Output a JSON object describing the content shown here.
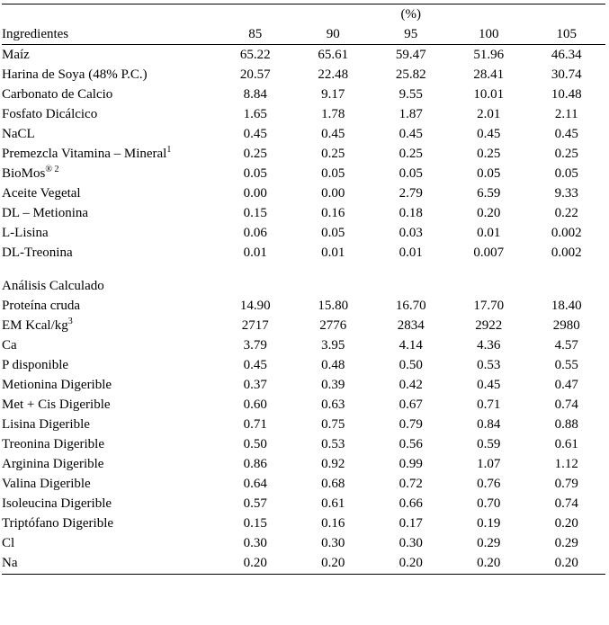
{
  "header": {
    "percent_label": "(%)",
    "row_label": "Ingredientes",
    "levels": [
      "85",
      "90",
      "95",
      "100",
      "105"
    ]
  },
  "ingredientes": [
    {
      "name": "Maíz",
      "sup": "",
      "vals": [
        "65.22",
        "65.61",
        "59.47",
        "51.96",
        "46.34"
      ]
    },
    {
      "name": "Harina de Soya (48% P.C.)",
      "sup": "",
      "vals": [
        "20.57",
        "22.48",
        "25.82",
        "28.41",
        "30.74"
      ]
    },
    {
      "name": "Carbonato de Calcio",
      "sup": "",
      "vals": [
        "8.84",
        "9.17",
        "9.55",
        "10.01",
        "10.48"
      ]
    },
    {
      "name": "Fosfato Dicálcico",
      "sup": "",
      "vals": [
        "1.65",
        "1.78",
        "1.87",
        "2.01",
        "2.11"
      ]
    },
    {
      "name": "NaCL",
      "sup": "",
      "vals": [
        "0.45",
        "0.45",
        "0.45",
        "0.45",
        "0.45"
      ]
    },
    {
      "name": "Premezcla Vitamina – Mineral",
      "sup": "1",
      "vals": [
        "0.25",
        "0.25",
        "0.25",
        "0.25",
        "0.25"
      ]
    },
    {
      "name": "BioMos",
      "sup": "® 2",
      "vals": [
        "0.05",
        "0.05",
        "0.05",
        "0.05",
        "0.05"
      ]
    },
    {
      "name": "Aceite Vegetal",
      "sup": "",
      "vals": [
        "0.00",
        "0.00",
        "2.79",
        "6.59",
        "9.33"
      ]
    },
    {
      "name": "DL – Metionina",
      "sup": "",
      "vals": [
        "0.15",
        "0.16",
        "0.18",
        "0.20",
        "0.22"
      ]
    },
    {
      "name": "L-Lisina",
      "sup": "",
      "vals": [
        "0.06",
        "0.05",
        "0.03",
        "0.01",
        "0.002"
      ]
    },
    {
      "name": "DL-Treonina",
      "sup": "",
      "vals": [
        "0.01",
        "0.01",
        "0.01",
        "0.007",
        "0.002"
      ]
    }
  ],
  "analisis_label": "Análisis Calculado",
  "analisis": [
    {
      "name": "Proteína cruda",
      "sup": "",
      "vals": [
        "14.90",
        "15.80",
        "16.70",
        "17.70",
        "18.40"
      ]
    },
    {
      "name": "EM Kcal/kg",
      "sup": "3",
      "vals": [
        "2717",
        "2776",
        "2834",
        "2922",
        "2980"
      ]
    },
    {
      "name": "Ca",
      "sup": "",
      "vals": [
        "3.79",
        "3.95",
        "4.14",
        "4.36",
        "4.57"
      ]
    },
    {
      "name": "P disponible",
      "sup": "",
      "vals": [
        "0.45",
        "0.48",
        "0.50",
        "0.53",
        "0.55"
      ]
    },
    {
      "name": "Metionina Digerible",
      "sup": "",
      "vals": [
        "0.37",
        "0.39",
        "0.42",
        "0.45",
        "0.47"
      ]
    },
    {
      "name": "Met + Cis Digerible",
      "sup": "",
      "vals": [
        "0.60",
        "0.63",
        "0.67",
        "0.71",
        "0.74"
      ]
    },
    {
      "name": "Lisina Digerible",
      "sup": "",
      "vals": [
        "0.71",
        "0.75",
        "0.79",
        "0.84",
        "0.88"
      ]
    },
    {
      "name": "Treonina Digerible",
      "sup": "",
      "vals": [
        "0.50",
        "0.53",
        "0.56",
        "0.59",
        "0.61"
      ]
    },
    {
      "name": "Arginina Digerible",
      "sup": "",
      "vals": [
        "0.86",
        "0.92",
        "0.99",
        "1.07",
        "1.12"
      ]
    },
    {
      "name": "Valina Digerible",
      "sup": "",
      "vals": [
        "0.64",
        "0.68",
        "0.72",
        "0.76",
        "0.79"
      ]
    },
    {
      "name": "Isoleucina Digerible",
      "sup": "",
      "vals": [
        "0.57",
        "0.61",
        "0.66",
        "0.70",
        "0.74"
      ]
    },
    {
      "name": "Triptófano Digerible",
      "sup": "",
      "vals": [
        "0.15",
        "0.16",
        "0.17",
        "0.19",
        "0.20"
      ]
    },
    {
      "name": "Cl",
      "sup": "",
      "vals": [
        "0.30",
        "0.30",
        "0.30",
        "0.29",
        "0.29"
      ]
    },
    {
      "name": "Na",
      "sup": "",
      "vals": [
        "0.20",
        "0.20",
        "0.20",
        "0.20",
        "0.20"
      ]
    }
  ]
}
